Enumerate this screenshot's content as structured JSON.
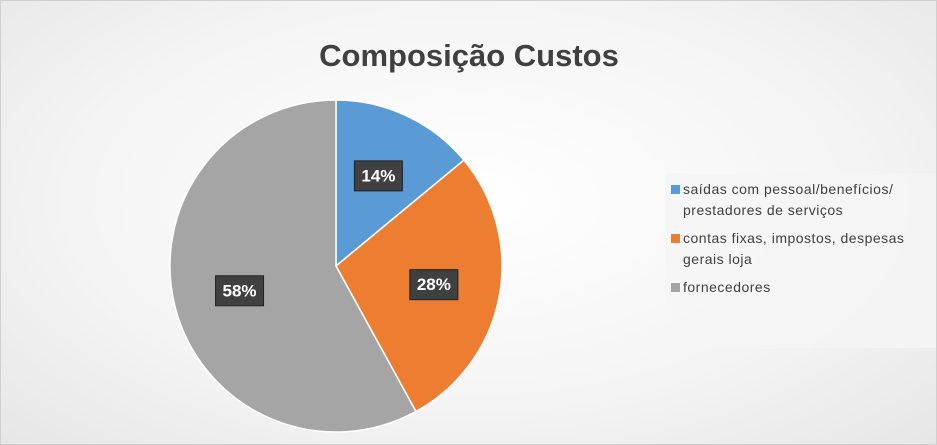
{
  "chart_data": {
    "type": "pie",
    "title": "Composição Custos",
    "categories": [
      "saídas com pessoal/benefícios/ prestadores de serviços",
      "contas fixas, impostos, despesas gerais loja",
      "fornecedores"
    ],
    "values": [
      14,
      28,
      58
    ],
    "value_labels": [
      "14%",
      "28%",
      "58%"
    ],
    "colors": [
      "#5b9bd5",
      "#ed7d31",
      "#a5a5a5"
    ],
    "legend": "right"
  }
}
